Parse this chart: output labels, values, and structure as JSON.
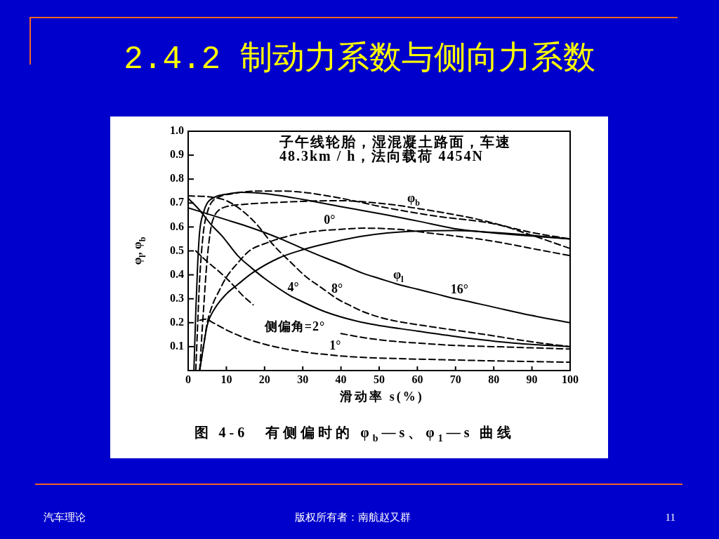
{
  "chart_data": {
    "type": "line",
    "title": "2.4.2 制动力系数与侧向力系数",
    "xlabel": "滑动率 s(%)",
    "ylabel": "φ$_{l}$, φ$_{b}$",
    "xlim": [
      0,
      100
    ],
    "xticks": [
      0,
      10,
      20,
      30,
      40,
      50,
      60,
      70,
      80,
      90,
      100
    ],
    "ylim": [
      0,
      1
    ],
    "yticks": [
      0.1,
      0.2,
      0.3,
      0.4,
      0.5,
      0.6,
      0.7,
      0.8,
      0.9,
      {
        "value": 1,
        "label": "1.0"
      }
    ],
    "series": [
      {
        "color": "#000000",
        "line_style": "solid",
        "x": [
          1.5,
          2,
          2.5,
          3,
          4,
          5,
          7,
          10,
          14,
          20,
          30,
          40,
          52,
          60,
          71,
          80,
          90,
          100
        ],
        "values": [
          0,
          0.25,
          0.45,
          0.58,
          0.66,
          0.7,
          0.725,
          0.737,
          0.745,
          0.74,
          0.715,
          0.685,
          0.65,
          0.625,
          0.59,
          0.575,
          0.562,
          0.55
        ]
      },
      {
        "color": "#000000",
        "line_style": "dashed",
        "x": [
          2,
          2.5,
          3,
          4,
          5,
          6,
          8,
          12,
          18,
          25,
          30,
          40,
          52,
          65,
          81,
          90,
          100
        ],
        "values": [
          0,
          0.2,
          0.38,
          0.58,
          0.66,
          0.7,
          0.725,
          0.74,
          0.75,
          0.75,
          0.745,
          0.72,
          0.68,
          0.645,
          0.61,
          0.565,
          0.51
        ]
      },
      {
        "color": "#000000",
        "line_style": "dashed",
        "x": [
          3,
          4,
          5,
          6,
          7,
          8,
          10,
          15,
          20,
          30,
          40,
          46,
          55,
          59,
          63,
          75,
          89,
          100
        ],
        "values": [
          0,
          0.25,
          0.47,
          0.6,
          0.65,
          0.67,
          0.685,
          0.695,
          0.7,
          0.707,
          0.71,
          0.705,
          0.69,
          0.68,
          0.67,
          0.635,
          0.58,
          0.55
        ]
      },
      {
        "color": "#000000",
        "line_style": "dashed",
        "x": [
          3,
          4,
          5,
          6.5,
          8,
          10,
          13,
          16,
          20,
          27,
          35,
          37,
          46,
          55,
          63,
          71,
          80,
          90,
          100
        ],
        "values": [
          0,
          0.1,
          0.2,
          0.28,
          0.33,
          0.39,
          0.45,
          0.5,
          0.53,
          0.565,
          0.585,
          0.587,
          0.595,
          0.59,
          0.575,
          0.56,
          0.54,
          0.51,
          0.48
        ]
      },
      {
        "color": "#000000",
        "line_style": "solid",
        "x": [
          3,
          4,
          5,
          7,
          10,
          13,
          17,
          23.7,
          30,
          36,
          45,
          52,
          60,
          70,
          80,
          90,
          100
        ],
        "values": [
          0,
          0.1,
          0.19,
          0.26,
          0.32,
          0.36,
          0.41,
          0.47,
          0.505,
          0.53,
          0.56,
          0.575,
          0.583,
          0.585,
          0.577,
          0.565,
          0.55
        ]
      },
      {
        "color": "#000000",
        "line_style": "solid",
        "x": [
          0,
          5,
          10,
          15,
          20,
          25,
          30,
          36,
          40,
          46,
          50,
          55,
          60,
          65,
          70,
          71,
          80,
          90,
          100
        ],
        "values": [
          0.68,
          0.655,
          0.63,
          0.605,
          0.577,
          0.545,
          0.51,
          0.47,
          0.445,
          0.405,
          0.385,
          0.36,
          0.34,
          0.32,
          0.3,
          0.297,
          0.265,
          0.23,
          0.2
        ]
      },
      {
        "color": "#000000",
        "line_style": "dashed",
        "x": [
          0,
          6,
          10,
          14,
          18,
          22,
          27,
          31,
          35,
          39,
          42,
          46,
          52,
          65,
          78,
          90,
          100
        ],
        "values": [
          0.73,
          0.725,
          0.71,
          0.67,
          0.61,
          0.53,
          0.45,
          0.39,
          0.345,
          0.3,
          0.275,
          0.245,
          0.215,
          0.18,
          0.15,
          0.12,
          0.1
        ]
      },
      {
        "color": "#000000",
        "line_style": "solid",
        "x": [
          0,
          3,
          6,
          9,
          13,
          16.5,
          20,
          27,
          27.5,
          36,
          46,
          60,
          71,
          85,
          100
        ],
        "values": [
          0.72,
          0.67,
          0.61,
          0.56,
          0.48,
          0.43,
          0.385,
          0.31,
          0.306,
          0.245,
          0.2,
          0.165,
          0.14,
          0.115,
          0.1
        ]
      },
      {
        "color": "#000000",
        "line_style": "dashed",
        "x": [
          2,
          5,
          8,
          11,
          14.5,
          17,
          22,
          30,
          40,
          45,
          52,
          60,
          70,
          80,
          90,
          100
        ],
        "values": [
          0.5,
          0.455,
          0.415,
          0.37,
          0.31,
          0.275,
          null,
          null,
          0.155,
          0.14,
          0.125,
          0.115,
          0.105,
          0.1,
          0.095,
          0.09
        ]
      },
      {
        "color": "#000000",
        "line_style": "dashed",
        "x": [
          3,
          4.5,
          6.5,
          10,
          15,
          20,
          25,
          31,
          38,
          38.5,
          46,
          55,
          70,
          85,
          100
        ],
        "values": [
          0.21,
          0.215,
          0.2,
          0.17,
          0.135,
          0.11,
          0.092,
          0.076,
          0.064,
          0.063,
          0.055,
          0.05,
          0.044,
          0.039,
          0.035
        ]
      }
    ],
    "annotations": [
      {
        "text": "0°",
        "x": 37,
        "y": 0.587
      },
      {
        "text": "φ$_{b}$",
        "x": 59,
        "y": 0.68
      },
      {
        "text": "4°",
        "x": 27.5,
        "y": 0.306
      },
      {
        "text": "8°",
        "x": 39,
        "y": 0.3
      },
      {
        "text": "φ$_{l}$",
        "x": 55,
        "y": 0.36
      },
      {
        "text": "16°",
        "x": 71,
        "y": 0.297
      },
      {
        "text": "1°",
        "x": 38.5,
        "y": 0.063
      },
      "侧偏角=2°",
      "子午线轮胎，湿混凝土路面，车速",
      "48.3km / h，法向载荷 4454N",
      "图 4-6　有侧偏时的 φ$_{b}$—s、φ$_{1}$—s 曲线",
      "汽车理论",
      "版权所有者：南航赵又群",
      "11"
    ]
  }
}
